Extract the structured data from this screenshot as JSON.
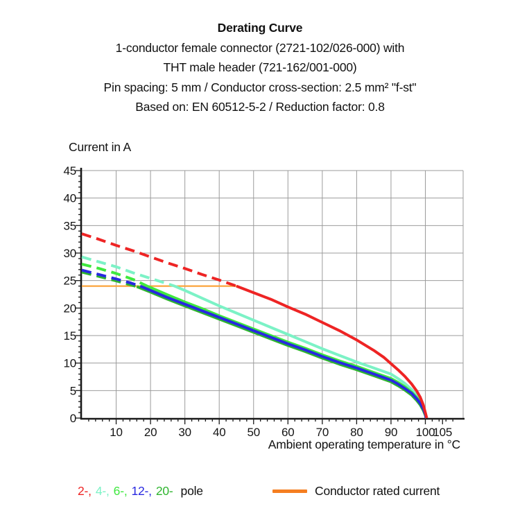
{
  "header": {
    "title": "Derating Curve",
    "subtitle_lines": [
      "1-conductor female connector (2721-102/026-000) with",
      "THT male header (721-162/001-000)",
      "Pin spacing: 5 mm / Conductor cross-section: 2.5 mm² \"f-st\"",
      "Based on: EN 60512-5-2 / Reduction factor: 0.8"
    ]
  },
  "chart_data": {
    "type": "line",
    "title": "Derating Curve",
    "xlabel": "Ambient operating temperature in °C",
    "ylabel": "Current in A",
    "xlim": [
      0,
      111
    ],
    "ylim": [
      0,
      45
    ],
    "x_ticks": [
      10,
      20,
      30,
      40,
      50,
      60,
      70,
      80,
      90,
      100,
      105
    ],
    "y_ticks": [
      0,
      5,
      10,
      15,
      20,
      25,
      30,
      35,
      40,
      45
    ],
    "x_minor_step": 2,
    "y_minor_step": 1,
    "grid": true,
    "grid_color": "#9b9b9b",
    "axis_color": "#1a1a1a",
    "rated_current": {
      "label": "Conductor rated current",
      "value": 24,
      "x_end": 45.5,
      "color": "#FBA43C"
    },
    "series": [
      {
        "name": "2-pole",
        "color": "#EE2424",
        "dash_until": 45,
        "points": [
          [
            0,
            33.5
          ],
          [
            5,
            32.5
          ],
          [
            10,
            31.4
          ],
          [
            15,
            30.4
          ],
          [
            20,
            29.3
          ],
          [
            25,
            28.2
          ],
          [
            30,
            27.2
          ],
          [
            35,
            26.1
          ],
          [
            40,
            25.1
          ],
          [
            45,
            24.0
          ],
          [
            50,
            22.8
          ],
          [
            55,
            21.6
          ],
          [
            60,
            20.2
          ],
          [
            65,
            18.9
          ],
          [
            70,
            17.4
          ],
          [
            75,
            15.9
          ],
          [
            80,
            14.2
          ],
          [
            85,
            12.3
          ],
          [
            88,
            11.0
          ],
          [
            90,
            9.9
          ],
          [
            92,
            8.8
          ],
          [
            94,
            7.6
          ],
          [
            96,
            6.2
          ],
          [
            97.5,
            4.9
          ],
          [
            98.5,
            3.8
          ],
          [
            99.4,
            2.4
          ],
          [
            100.0,
            1.0
          ],
          [
            100.4,
            0.0
          ]
        ]
      },
      {
        "name": "4-pole",
        "color": "#7CF2C6",
        "dash_until": 27,
        "points": [
          [
            0,
            29.3
          ],
          [
            5,
            28.4
          ],
          [
            10,
            27.5
          ],
          [
            15,
            26.4
          ],
          [
            20,
            25.4
          ],
          [
            24,
            24.6
          ],
          [
            27,
            24.0
          ],
          [
            30,
            23.2
          ],
          [
            35,
            21.8
          ],
          [
            40,
            20.4
          ],
          [
            45,
            19.1
          ],
          [
            50,
            17.8
          ],
          [
            55,
            16.5
          ],
          [
            60,
            15.2
          ],
          [
            65,
            13.9
          ],
          [
            70,
            12.6
          ],
          [
            75,
            11.4
          ],
          [
            80,
            10.2
          ],
          [
            85,
            9.1
          ],
          [
            90,
            8.0
          ],
          [
            92,
            7.2
          ],
          [
            94,
            6.3
          ],
          [
            96,
            5.2
          ],
          [
            97.5,
            4.1
          ],
          [
            98.5,
            3.2
          ],
          [
            99.4,
            2.0
          ],
          [
            100.0,
            0.9
          ],
          [
            100.3,
            0.0
          ]
        ]
      },
      {
        "name": "6-pole",
        "color": "#3FE83F",
        "dash_until": 19,
        "points": [
          [
            0,
            28.0
          ],
          [
            5,
            27.2
          ],
          [
            10,
            26.3
          ],
          [
            15,
            25.2
          ],
          [
            19,
            24.0
          ],
          [
            25,
            22.4
          ],
          [
            30,
            21.1
          ],
          [
            35,
            19.9
          ],
          [
            40,
            18.6
          ],
          [
            45,
            17.4
          ],
          [
            50,
            16.2
          ],
          [
            55,
            15.0
          ],
          [
            60,
            13.8
          ],
          [
            65,
            12.7
          ],
          [
            70,
            11.5
          ],
          [
            75,
            10.4
          ],
          [
            80,
            9.4
          ],
          [
            85,
            8.3
          ],
          [
            90,
            7.2
          ],
          [
            92,
            6.5
          ],
          [
            94,
            5.7
          ],
          [
            96,
            4.7
          ],
          [
            97.5,
            3.7
          ],
          [
            98.5,
            2.9
          ],
          [
            99.4,
            1.8
          ],
          [
            100.0,
            0.8
          ],
          [
            100.25,
            0.0
          ]
        ]
      },
      {
        "name": "12-pole",
        "color": "#2828E0",
        "dash_until": 17,
        "points": [
          [
            0,
            26.9
          ],
          [
            5,
            26.1
          ],
          [
            10,
            25.3
          ],
          [
            14,
            24.6
          ],
          [
            17,
            24.0
          ],
          [
            20,
            23.2
          ],
          [
            25,
            21.9
          ],
          [
            30,
            20.7
          ],
          [
            35,
            19.5
          ],
          [
            40,
            18.3
          ],
          [
            45,
            17.1
          ],
          [
            50,
            15.9
          ],
          [
            55,
            14.7
          ],
          [
            60,
            13.5
          ],
          [
            65,
            12.4
          ],
          [
            70,
            11.2
          ],
          [
            75,
            10.1
          ],
          [
            80,
            9.1
          ],
          [
            85,
            8.0
          ],
          [
            90,
            6.9
          ],
          [
            92,
            6.2
          ],
          [
            94,
            5.4
          ],
          [
            96,
            4.5
          ],
          [
            97.5,
            3.5
          ],
          [
            98.5,
            2.7
          ],
          [
            99.4,
            1.7
          ],
          [
            100.0,
            0.7
          ],
          [
            100.2,
            0.0
          ]
        ]
      },
      {
        "name": "20-pole",
        "color": "#2FB52F",
        "dash_until": 16,
        "points": [
          [
            0,
            26.55
          ],
          [
            5,
            25.75
          ],
          [
            10,
            24.95
          ],
          [
            14,
            24.25
          ],
          [
            16,
            23.9
          ],
          [
            20,
            22.9
          ],
          [
            25,
            21.6
          ],
          [
            30,
            20.4
          ],
          [
            35,
            19.2
          ],
          [
            40,
            18.0
          ],
          [
            45,
            16.8
          ],
          [
            50,
            15.6
          ],
          [
            55,
            14.4
          ],
          [
            60,
            13.2
          ],
          [
            65,
            12.1
          ],
          [
            70,
            10.9
          ],
          [
            75,
            9.8
          ],
          [
            80,
            8.8
          ],
          [
            85,
            7.7
          ],
          [
            90,
            6.6
          ],
          [
            92,
            5.9
          ],
          [
            94,
            5.1
          ],
          [
            96,
            4.2
          ],
          [
            97.5,
            3.2
          ],
          [
            98.5,
            2.4
          ],
          [
            99.4,
            1.4
          ],
          [
            100.0,
            0.5
          ],
          [
            100.2,
            0.0
          ]
        ]
      }
    ],
    "legend_position": "bottom"
  },
  "legend": {
    "pole_items": [
      {
        "label": "2-,",
        "color": "#EE2424"
      },
      {
        "label": "4-,",
        "color": "#7CF2C6"
      },
      {
        "label": "6-,",
        "color": "#3FE83F"
      },
      {
        "label": "12-,",
        "color": "#2828E0"
      },
      {
        "label": "20-",
        "color": "#2FB52F"
      }
    ],
    "pole_suffix": "pole",
    "rated_label": "Conductor rated current",
    "rated_swatch_color": "#F57E20"
  }
}
